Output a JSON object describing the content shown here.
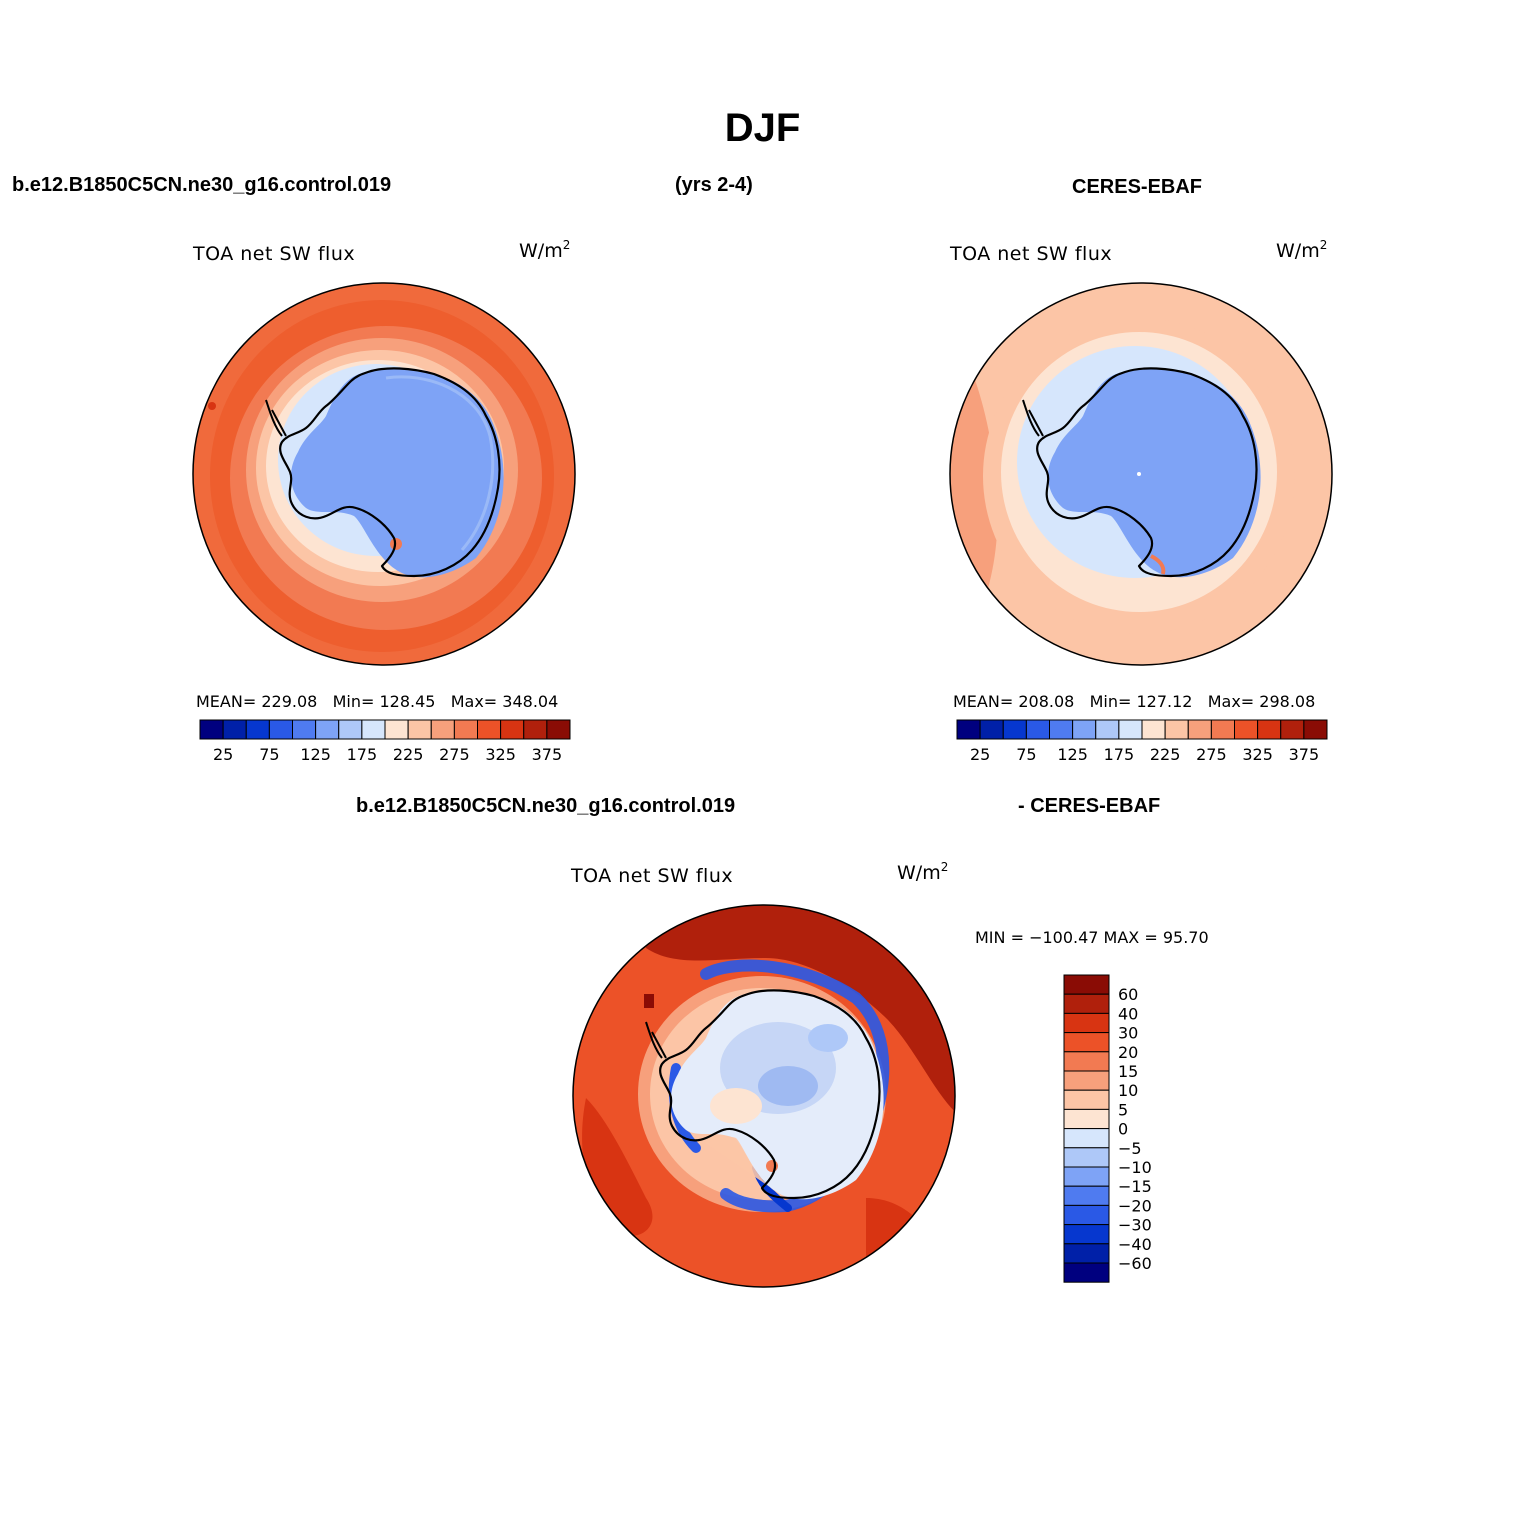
{
  "title": "DJF",
  "header": {
    "case": "b.e12.B1850C5CN.ne30_g16.control.019",
    "years": "(yrs 2-4)",
    "obs": "CERES-EBAF"
  },
  "diff_header": {
    "case": "b.e12.B1850C5CN.ne30_g16.control.019",
    "obs": "- CERES-EBAF"
  },
  "panels": [
    {
      "variable": "TOA net SW flux",
      "units_base": "W/m",
      "units_exp": "2",
      "stats": {
        "mean_label": "MEAN=",
        "mean": "229.08",
        "min_label": "Min=",
        "min": "128.45",
        "max_label": "Max=",
        "max": "348.04"
      }
    },
    {
      "variable": "TOA net SW flux",
      "units_base": "W/m",
      "units_exp": "2",
      "stats": {
        "mean_label": "MEAN=",
        "mean": "208.08",
        "min_label": "Min=",
        "min": "127.12",
        "max_label": "Max=",
        "max": "298.08"
      }
    }
  ],
  "diff_panel": {
    "variable": "TOA net SW flux",
    "units_base": "W/m",
    "units_exp": "2",
    "minmax": "MIN = −100.47 MAX =  95.70"
  },
  "colorbar_horizontal": {
    "colors": [
      "#00007f",
      "#0020a8",
      "#0637cf",
      "#2a59e6",
      "#4f7bf0",
      "#7ea3f6",
      "#aec8f8",
      "#d6e6fc",
      "#fde4d2",
      "#fcc5a6",
      "#f7a07c",
      "#f27a52",
      "#ec5228",
      "#d83412",
      "#b0200c",
      "#8a0c05"
    ],
    "tick_labels": [
      "25",
      "75",
      "125",
      "175",
      "225",
      "275",
      "325",
      "375"
    ]
  },
  "colorbar_vertical": {
    "colors": [
      "#8a0c05",
      "#b0200c",
      "#d83412",
      "#ec5228",
      "#f27a52",
      "#f7a07c",
      "#fcc5a6",
      "#fde4d2",
      "#d6e6fc",
      "#aec8f8",
      "#7ea3f6",
      "#4f7bf0",
      "#2a59e6",
      "#0637cf",
      "#0020a8",
      "#00007f"
    ],
    "tick_labels": [
      "60",
      "40",
      "30",
      "20",
      "15",
      "10",
      "5",
      "0",
      "−5",
      "−10",
      "−15",
      "−20",
      "−30",
      "−40",
      "−60"
    ]
  }
}
